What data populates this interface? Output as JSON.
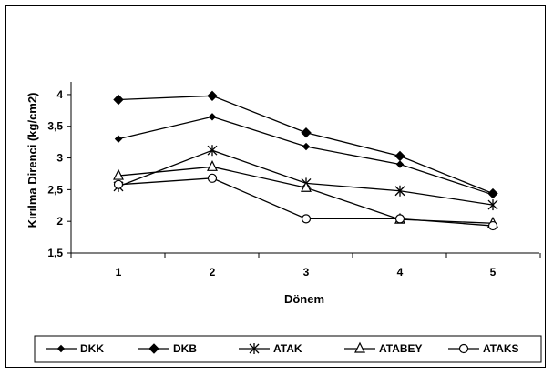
{
  "chart_data": {
    "type": "line",
    "xlabel": "Dönem",
    "ylabel": "Kırılma Direnci (kg/cm2)",
    "categories": [
      "1",
      "2",
      "3",
      "4",
      "5"
    ],
    "ylim": [
      1.5,
      4.2
    ],
    "yticks": [
      "1,5",
      "2",
      "2,5",
      "3",
      "3,5",
      "4"
    ],
    "ytick_values": [
      1.5,
      2,
      2.5,
      3,
      3.5,
      4
    ],
    "grid": false,
    "legend_position": "bottom",
    "series": [
      {
        "name": "DKK",
        "marker": "diamond-small",
        "values": [
          3.3,
          3.65,
          3.18,
          2.9,
          2.42
        ]
      },
      {
        "name": "DKB",
        "marker": "diamond",
        "values": [
          3.92,
          3.98,
          3.4,
          3.03,
          2.44
        ]
      },
      {
        "name": "ATAK",
        "marker": "asterisk",
        "values": [
          2.55,
          3.12,
          2.6,
          2.48,
          2.26
        ]
      },
      {
        "name": "ATABEY",
        "marker": "triangle",
        "values": [
          2.72,
          2.86,
          2.53,
          2.03,
          1.97
        ]
      },
      {
        "name": "ATAKS",
        "marker": "circle",
        "values": [
          2.58,
          2.68,
          2.04,
          2.04,
          1.93
        ]
      }
    ],
    "line_color": "#000000"
  }
}
